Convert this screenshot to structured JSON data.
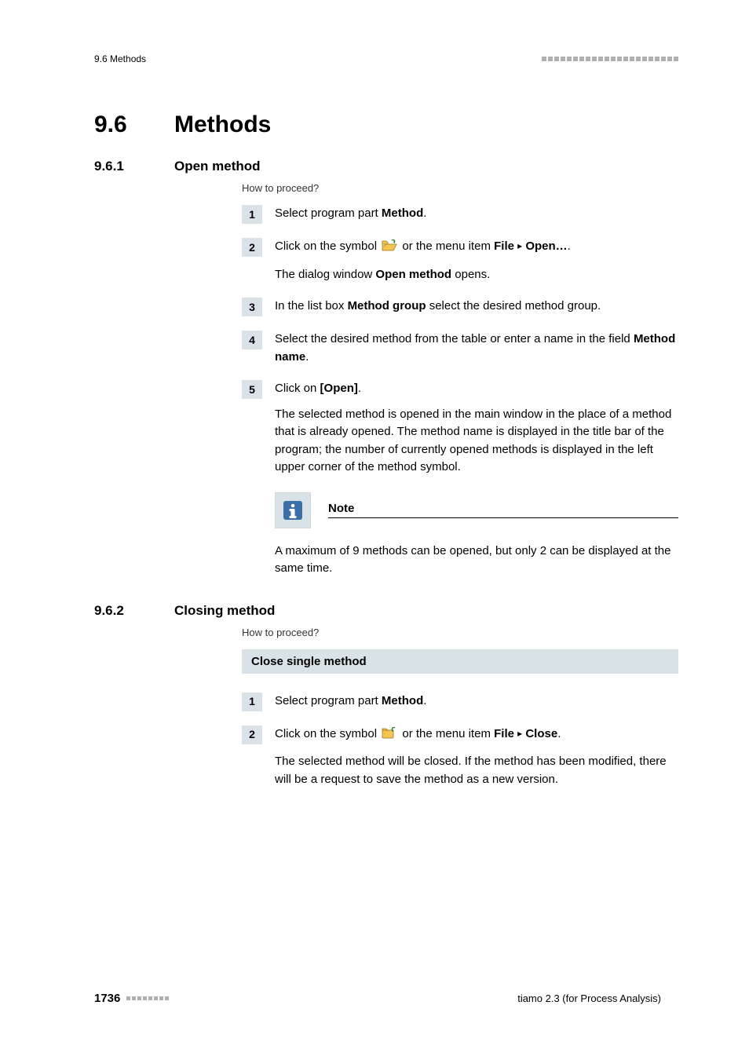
{
  "running_head": {
    "left": "9.6 Methods"
  },
  "h1": {
    "number": "9.6",
    "title": "Methods"
  },
  "sections": [
    {
      "number": "9.6.1",
      "title": "Open method",
      "howto": "How to proceed?",
      "steps": [
        {
          "num": "1",
          "parts": [
            {
              "type": "text",
              "value": "Select program part "
            },
            {
              "type": "bold",
              "value": "Method"
            },
            {
              "type": "text",
              "value": "."
            }
          ]
        },
        {
          "num": "2",
          "paragraphs": [
            [
              {
                "type": "text",
                "value": "Click on the symbol "
              },
              {
                "type": "icon",
                "name": "open-folder-icon"
              },
              {
                "type": "text",
                "value": " or the menu item "
              },
              {
                "type": "bold",
                "value": "File"
              },
              {
                "type": "text",
                "value": " "
              },
              {
                "type": "arrow"
              },
              {
                "type": "text",
                "value": " "
              },
              {
                "type": "bold",
                "value": "Open…"
              },
              {
                "type": "text",
                "value": "."
              }
            ],
            [
              {
                "type": "text",
                "value": "The dialog window "
              },
              {
                "type": "bold",
                "value": "Open method"
              },
              {
                "type": "text",
                "value": " opens."
              }
            ]
          ]
        },
        {
          "num": "3",
          "parts": [
            {
              "type": "text",
              "value": "In the list box "
            },
            {
              "type": "bold",
              "value": "Method group"
            },
            {
              "type": "text",
              "value": " select the desired method group."
            }
          ]
        },
        {
          "num": "4",
          "parts": [
            {
              "type": "text",
              "value": "Select the desired method from the table or enter a name in the field "
            },
            {
              "type": "bold",
              "value": "Method name"
            },
            {
              "type": "text",
              "value": "."
            }
          ]
        },
        {
          "num": "5",
          "paragraphs": [
            [
              {
                "type": "text",
                "value": "Click on "
              },
              {
                "type": "bold",
                "value": "[Open]"
              },
              {
                "type": "text",
                "value": "."
              }
            ],
            [
              {
                "type": "text",
                "value": "The selected method is opened in the main window in the place of a method that is already opened. The method name is displayed in the title bar of the program; the number of currently opened methods is displayed in the left upper corner of the method symbol."
              }
            ]
          ]
        }
      ],
      "note": {
        "title": "Note",
        "body": "A maximum of 9 methods can be opened, but only 2 can be displayed at the same time."
      }
    },
    {
      "number": "9.6.2",
      "title": "Closing method",
      "howto": "How to proceed?",
      "subheading_bar": "Close single method",
      "steps": [
        {
          "num": "1",
          "parts": [
            {
              "type": "text",
              "value": "Select program part "
            },
            {
              "type": "bold",
              "value": "Method"
            },
            {
              "type": "text",
              "value": "."
            }
          ]
        },
        {
          "num": "2",
          "paragraphs": [
            [
              {
                "type": "text",
                "value": "Click on the symbol "
              },
              {
                "type": "icon",
                "name": "close-folder-icon"
              },
              {
                "type": "text",
                "value": " or the menu item "
              },
              {
                "type": "bold",
                "value": "File"
              },
              {
                "type": "text",
                "value": " "
              },
              {
                "type": "arrow"
              },
              {
                "type": "text",
                "value": " "
              },
              {
                "type": "bold",
                "value": "Close"
              },
              {
                "type": "text",
                "value": "."
              }
            ],
            [
              {
                "type": "text",
                "value": "The selected method will be closed. If the method has been modified, there will be a request to save the method as a new version."
              }
            ]
          ]
        }
      ]
    }
  ],
  "footer": {
    "page_num": "1736",
    "right": "tiamo 2.3 (for Process Analysis)"
  },
  "colors": {
    "box_bg": "#d9e2e7",
    "dot_gray": "#b0b0b0",
    "info_blue": "#3b6fa8"
  },
  "icons": {
    "open-folder-icon": "open-folder",
    "close-folder-icon": "close-folder",
    "info-icon": "info"
  }
}
